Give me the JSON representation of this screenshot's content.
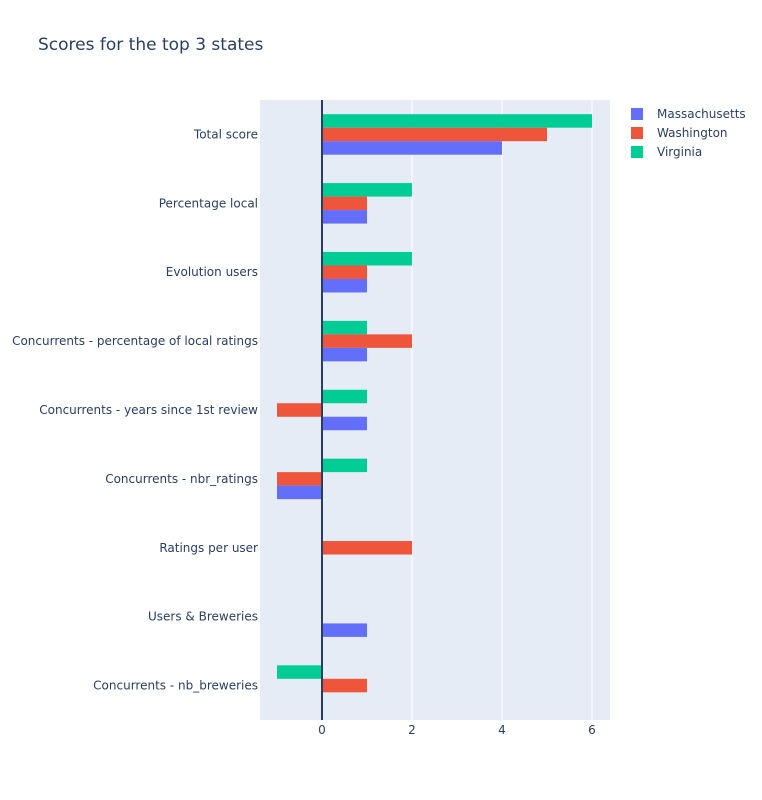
{
  "chart_data": {
    "type": "bar",
    "orientation": "horizontal",
    "title": "Scores for the top 3 states",
    "xlabel": "",
    "ylabel": "",
    "categories": [
      "Total score",
      "Percentage local",
      "Evolution users",
      "Concurrents - percentage of local ratings",
      "Concurrents - years since 1st review",
      "Concurrents - nbr_ratings",
      "Ratings per user",
      "Users & Breweries",
      "Concurrents - nb_breweries"
    ],
    "series": [
      {
        "name": "Massachusetts",
        "color": "#636efa",
        "values": [
          4,
          1,
          1,
          1,
          1,
          -1,
          0,
          1,
          0
        ]
      },
      {
        "name": "Washington",
        "color": "#ef553b",
        "values": [
          5,
          1,
          1,
          2,
          -1,
          -1,
          2,
          0,
          1
        ]
      },
      {
        "name": "Virginia",
        "color": "#00cc96",
        "values": [
          6,
          2,
          2,
          1,
          1,
          1,
          0,
          0,
          -1
        ]
      }
    ],
    "xticks": [
      0,
      2,
      4,
      6
    ],
    "xlim": [
      -1.35,
      6.4
    ],
    "grid": true,
    "legend_position": "top-right"
  }
}
